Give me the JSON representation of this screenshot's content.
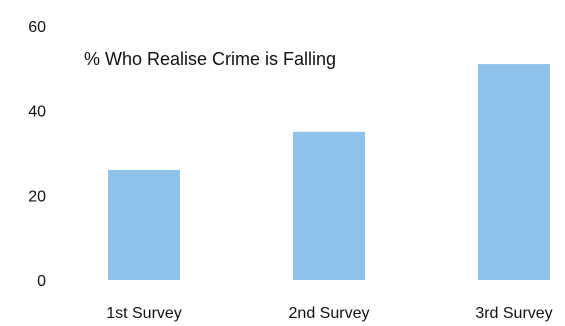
{
  "chart_data": {
    "type": "bar",
    "title": "% Who Realise Crime is Falling",
    "categories": [
      "1st Survey",
      "2nd Survey",
      "3rd Survey"
    ],
    "values": [
      26,
      35,
      51
    ],
    "ylim": [
      0,
      60
    ],
    "yticks": [
      0,
      20,
      40,
      60
    ],
    "grid": false,
    "legend": "none",
    "bar_color": "#8ec2ea"
  }
}
